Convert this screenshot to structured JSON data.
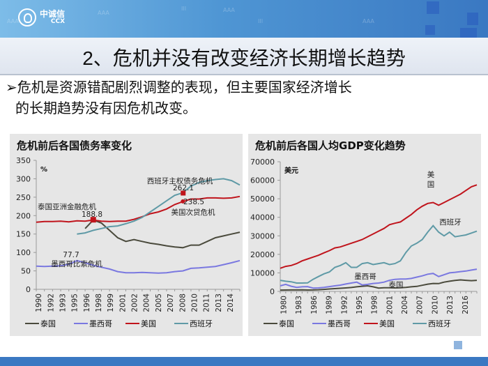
{
  "header": {
    "logo_cn": "中诚信",
    "logo_en": "CCX"
  },
  "slide": {
    "title": "2、危机并没有改变经济长期增长趋势",
    "bullet_marker": "➢",
    "bullet_line1": "危机是资源错配剧烈调整的表现，但主要国家经济增长",
    "bullet_line2": "的长期趋势没有因危机改变。"
  },
  "colors": {
    "thailand": "#4a4a3c",
    "mexico": "#7a78e0",
    "usa": "#c0141c",
    "spain": "#5f9aa6",
    "panel_bg": "#e6e6e6",
    "header_blue": "#3a78c2"
  },
  "chart_data": [
    {
      "type": "line",
      "title": "危机前后各国债务率变化",
      "ylabel": "%",
      "xlabel": "",
      "ylim": [
        0,
        350
      ],
      "yticks": [
        0,
        50,
        100,
        150,
        200,
        250,
        300,
        350
      ],
      "xtick_labels": [
        "1990",
        "1992",
        "1993",
        "1995",
        "1996",
        "1998",
        "1999",
        "2001",
        "2002",
        "2004",
        "2005",
        "2007",
        "2008",
        "2010",
        "2011",
        "2013",
        "2014"
      ],
      "x": [
        1990,
        1991,
        1992,
        1993,
        1994,
        1995,
        1996,
        1997,
        1998,
        1999,
        2000,
        2001,
        2002,
        2003,
        2004,
        2005,
        2006,
        2007,
        2008,
        2009,
        2010,
        2011,
        2012,
        2013,
        2014,
        2015
      ],
      "series": [
        {
          "name": "泰国",
          "values": [
            null,
            null,
            null,
            null,
            null,
            null,
            165,
            188,
            180,
            160,
            140,
            130,
            135,
            130,
            125,
            122,
            118,
            115,
            113,
            120,
            120,
            130,
            140,
            145,
            150,
            155
          ]
        },
        {
          "name": "墨西哥",
          "values": [
            63,
            62,
            63,
            64,
            68,
            78,
            72,
            65,
            60,
            55,
            48,
            45,
            45,
            46,
            45,
            44,
            45,
            48,
            50,
            57,
            58,
            60,
            62,
            67,
            72,
            78
          ]
        },
        {
          "name": "美国",
          "values": [
            182,
            184,
            184,
            185,
            183,
            186,
            185,
            188,
            185,
            184,
            185,
            185,
            190,
            197,
            205,
            210,
            218,
            230,
            238,
            245,
            245,
            248,
            248,
            247,
            248,
            252
          ]
        },
        {
          "name": "西班牙",
          "values": [
            null,
            null,
            null,
            null,
            null,
            150,
            153,
            160,
            165,
            170,
            172,
            178,
            185,
            195,
            210,
            225,
            240,
            255,
            262,
            280,
            290,
            295,
            298,
            300,
            295,
            283
          ]
        }
      ],
      "annotations": [
        {
          "text": "泰国亚洲金融危机",
          "x": 1997
        },
        {
          "text": "188.8",
          "x": 1997,
          "y": 188.8
        },
        {
          "text": "西班牙主权债务危机",
          "x": 2008
        },
        {
          "text": "262.1",
          "x": 2008,
          "y": 262.1
        },
        {
          "text": "238.5",
          "x": 2008,
          "y": 238.5
        },
        {
          "text": "美国次贷危机",
          "x": 2008
        },
        {
          "text": "77.7",
          "x": 1995,
          "y": 77.7
        },
        {
          "text": "墨西哥比索危机",
          "x": 1995
        }
      ],
      "legend": [
        "泰国",
        "墨西哥",
        "美国",
        "西班牙"
      ],
      "legend_position": "bottom",
      "grid": false
    },
    {
      "type": "line",
      "title": "危机前后各国人均GDP变化趋势",
      "ylabel": "美元",
      "xlabel": "",
      "ylim": [
        0,
        70000
      ],
      "yticks": [
        0,
        10000,
        20000,
        30000,
        40000,
        50000,
        60000,
        70000
      ],
      "xtick_labels": [
        "1980",
        "1983",
        "1986",
        "1989",
        "1992",
        "1995",
        "1998",
        "2001",
        "2004",
        "2007",
        "2010",
        "2013",
        "2016"
      ],
      "x": [
        1980,
        1981,
        1982,
        1983,
        1984,
        1985,
        1986,
        1987,
        1988,
        1989,
        1990,
        1991,
        1992,
        1993,
        1994,
        1995,
        1996,
        1997,
        1998,
        1999,
        2000,
        2001,
        2002,
        2003,
        2004,
        2005,
        2006,
        2007,
        2008,
        2009,
        2010,
        2011,
        2012,
        2013,
        2014,
        2015,
        2016
      ],
      "series": [
        {
          "name": "泰国",
          "values": [
            700,
            750,
            780,
            800,
            820,
            750,
            800,
            900,
            1100,
            1300,
            1500,
            1700,
            1900,
            2100,
            2500,
            2800,
            3000,
            2500,
            1800,
            2000,
            2000,
            1900,
            2000,
            2200,
            2500,
            2700,
            3300,
            3900,
            4300,
            4200,
            5000,
            5500,
            5900,
            6200,
            6000,
            5800,
            6000
          ]
        },
        {
          "name": "墨西哥",
          "values": [
            3000,
            3800,
            2800,
            2200,
            2500,
            2600,
            1800,
            1900,
            2200,
            2600,
            3000,
            3400,
            4000,
            4500,
            5000,
            3500,
            3800,
            4300,
            4500,
            5000,
            6000,
            6500,
            6700,
            6700,
            7000,
            7700,
            8400,
            9300,
            9700,
            8000,
            9000,
            10000,
            10300,
            10700,
            11000,
            11500,
            12000
          ]
        },
        {
          "name": "美国",
          "values": [
            12500,
            13500,
            14000,
            15000,
            16500,
            17500,
            18500,
            19500,
            20800,
            22000,
            23500,
            24000,
            25000,
            26000,
            27000,
            28000,
            29500,
            31000,
            32500,
            34000,
            36000,
            36800,
            37500,
            39500,
            41500,
            44000,
            46000,
            47500,
            48000,
            46500,
            48000,
            49500,
            51000,
            52500,
            54500,
            56500,
            57500
          ]
        },
        {
          "name": "西班牙",
          "values": [
            6000,
            5500,
            5200,
            4500,
            4500,
            4600,
            6500,
            8000,
            9500,
            10500,
            13000,
            14000,
            15500,
            13000,
            13000,
            15000,
            15500,
            14500,
            15000,
            15500,
            14500,
            15000,
            16500,
            21000,
            24500,
            26000,
            28000,
            32000,
            35500,
            32000,
            30000,
            32000,
            29500,
            30000,
            30500,
            31500,
            32500
          ]
        }
      ],
      "annotations": [
        {
          "text": "美国",
          "x": 2006
        },
        {
          "text": "西班牙",
          "x": 2009
        },
        {
          "text": "墨西哥",
          "x": 1994
        },
        {
          "text": "泰国",
          "x": 2001
        }
      ],
      "legend": [
        "泰国",
        "墨西哥",
        "美国",
        "西班牙"
      ],
      "legend_position": "bottom",
      "grid": false
    }
  ]
}
